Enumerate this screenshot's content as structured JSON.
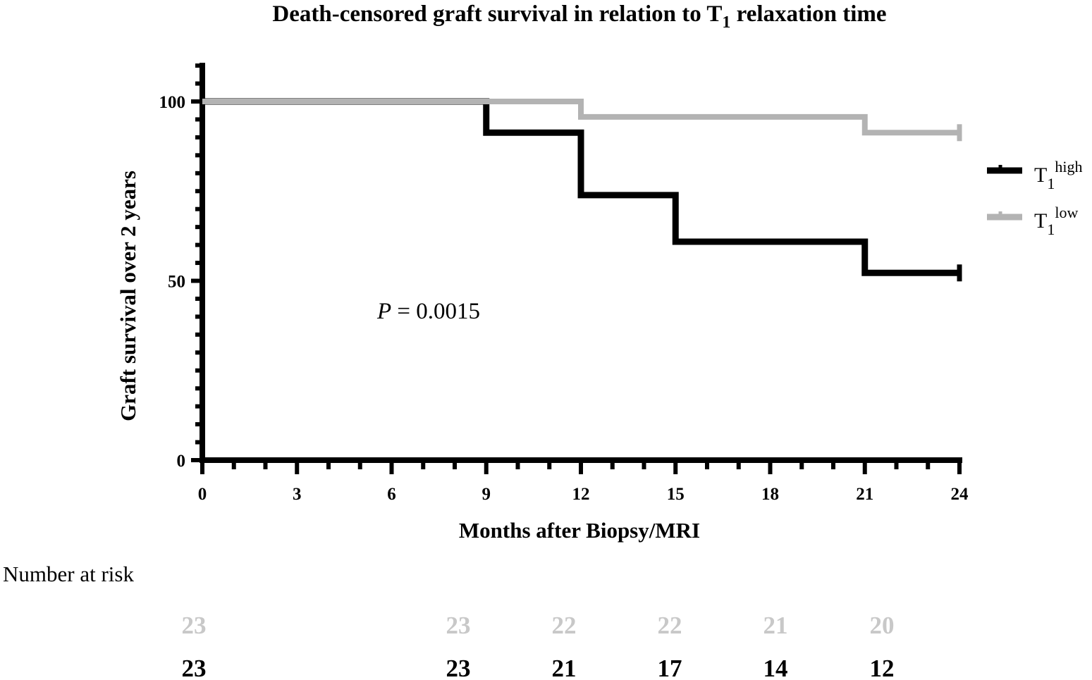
{
  "chart_data": {
    "type": "line",
    "title": {
      "main": "Death-censored graft survival in relation to T",
      "sub": "1",
      "rest": " relaxation time"
    },
    "xlabel": "Months after Biopsy/MRI",
    "ylabel": "Graft survival over 2 years",
    "xlim": [
      0,
      24
    ],
    "ylim": [
      0,
      110
    ],
    "x_ticks": [
      0,
      3,
      6,
      9,
      12,
      15,
      18,
      21,
      24
    ],
    "y_ticks": [
      0,
      50,
      100
    ],
    "annotation": {
      "italic": "P",
      "text": " = 0.0015"
    },
    "series": [
      {
        "name": {
          "base": "T",
          "sub": "1",
          "sup": "high"
        },
        "color": "#000000",
        "x": [
          0,
          9,
          12,
          15,
          21,
          24
        ],
        "y": [
          100,
          91.3,
          73.9,
          60.9,
          52.2,
          52.2
        ],
        "censored": [
          {
            "x": 24,
            "y": 52.2
          }
        ]
      },
      {
        "name": {
          "base": "T",
          "sub": "1",
          "sup": "low"
        },
        "color": "#b3b3b3",
        "x": [
          0,
          12,
          21,
          24
        ],
        "y": [
          100,
          95.7,
          91.3,
          91.3
        ],
        "censored": [
          {
            "x": 24,
            "y": 91.3
          }
        ]
      }
    ],
    "legend_position": "right",
    "risk_table": {
      "title": "Number at risk",
      "rows": [
        {
          "color": "#c8c8c8",
          "values": [
            "23",
            "23",
            "22",
            "22",
            "21",
            "20"
          ]
        },
        {
          "color": "#000000",
          "values": [
            "23",
            "23",
            "21",
            "17",
            "14",
            "12"
          ]
        }
      ]
    }
  }
}
